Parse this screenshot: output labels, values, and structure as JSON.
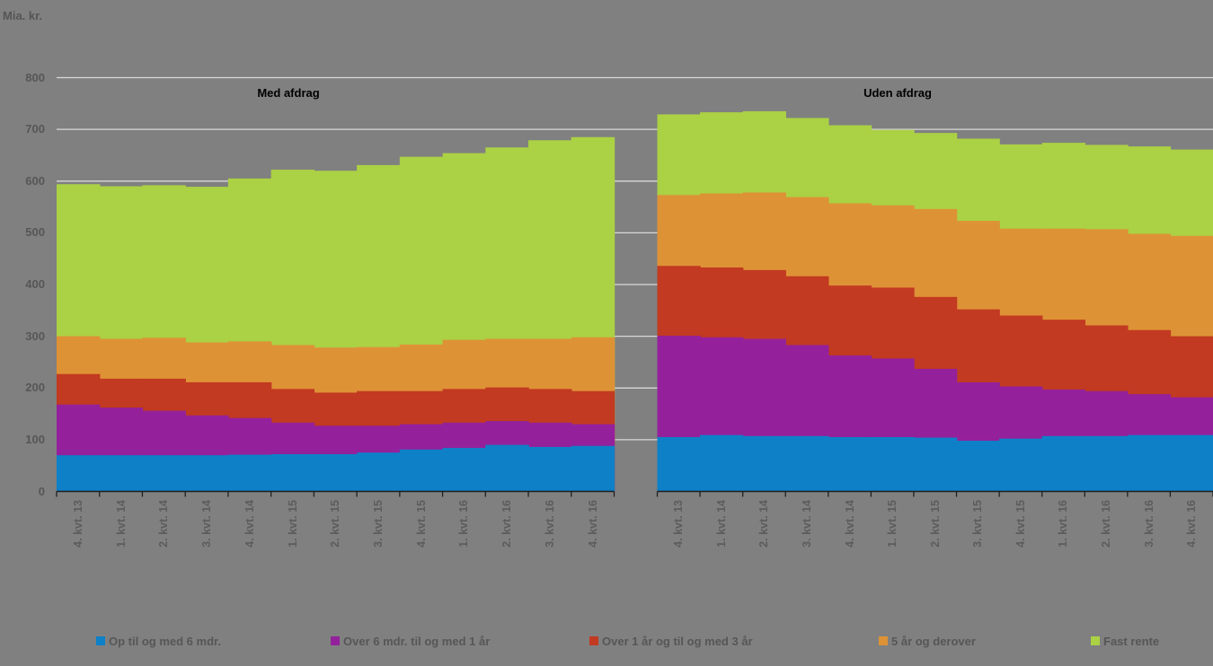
{
  "chart_data": {
    "type": "area",
    "subtype": "stacked-step-columns",
    "unit_label": "Mia. kr.",
    "ylim": [
      0,
      800
    ],
    "y_ticks": [
      0,
      100,
      200,
      300,
      400,
      500,
      600,
      700,
      800
    ],
    "grid": "horizontal",
    "legend_position": "bottom",
    "background_color": "#808080",
    "gridline_color": "#d9d9d9",
    "axis_line_color": "#1f1f1f",
    "categories": [
      "4. kvt. 13",
      "1. kvt. 14",
      "2. kvt. 14",
      "3. kvt. 14",
      "4. kvt. 14",
      "1. kvt. 15",
      "2. kvt. 15",
      "3. kvt. 15",
      "4. kvt. 15",
      "1. kvt. 16",
      "2. kvt. 16",
      "3. kvt. 16",
      "4. kvt. 16"
    ],
    "series_colors": {
      "Op til og med 6 mdr.": "#0E80C8",
      "Over 6 mdr. til og med 1 år": "#94219B",
      "Over 1 år og til og med 3 år": "#C23A21",
      "5 år og derover": "#DE9236",
      "Fast rente": "#ABD144"
    },
    "panels": [
      {
        "title": "Med afdrag",
        "series": [
          {
            "name": "Op til og med 6 mdr.",
            "color": "#0E80C8",
            "values": [
              70,
              70,
              70,
              70,
              71,
              72,
              72,
              75,
              81,
              84,
              90,
              86,
              88
            ]
          },
          {
            "name": "Over 6 mdr. til og med 1 år",
            "color": "#94219B",
            "values": [
              98,
              92,
              86,
              77,
              71,
              61,
              55,
              52,
              49,
              49,
              46,
              47,
              42
            ]
          },
          {
            "name": "Over 1 år og til og med 3 år",
            "color": "#C23A21",
            "values": [
              59,
              56,
              62,
              64,
              69,
              65,
              64,
              67,
              64,
              65,
              65,
              65,
              64
            ]
          },
          {
            "name": "5 år og derover",
            "color": "#DE9236",
            "values": [
              73,
              77,
              79,
              77,
              79,
              85,
              87,
              85,
              90,
              95,
              94,
              97,
              104
            ]
          },
          {
            "name": "Fast rente",
            "color": "#ABD144",
            "values": [
              294,
              295,
              295,
              301,
              315,
              339,
              342,
              352,
              363,
              361,
              370,
              384,
              387
            ]
          }
        ]
      },
      {
        "title": "Uden afdrag",
        "series": [
          {
            "name": "Op til og med 6 mdr.",
            "color": "#0E80C8",
            "values": [
              105,
              109,
              107,
              107,
              105,
              105,
              104,
              98,
              102,
              107,
              107,
              109,
              109
            ]
          },
          {
            "name": "Over 6 mdr. til og med 1 år",
            "color": "#94219B",
            "values": [
              196,
              189,
              188,
              176,
              158,
              152,
              133,
              113,
              101,
              90,
              87,
              79,
              73
            ]
          },
          {
            "name": "Over 1 år og til og med 3 år",
            "color": "#C23A21",
            "values": [
              135,
              135,
              133,
              133,
              135,
              137,
              139,
              141,
              137,
              135,
              127,
              124,
              118
            ]
          },
          {
            "name": "5 år og derover",
            "color": "#DE9236",
            "values": [
              137,
              143,
              150,
              153,
              159,
              159,
              170,
              171,
              168,
              176,
              186,
              186,
              194
            ]
          },
          {
            "name": "Fast rente",
            "color": "#ABD144",
            "values": [
              156,
              157,
              157,
              153,
              151,
              146,
              147,
              159,
              163,
              166,
              163,
              169,
              167
            ]
          }
        ]
      }
    ],
    "legend": {
      "items": [
        {
          "label": "Op til og med 6 mdr.",
          "color": "#0E80C8"
        },
        {
          "label": "Over 6 mdr. til og med 1 år",
          "color": "#94219B"
        },
        {
          "label": "Over 1 år og til og med 3 år",
          "color": "#C23A21"
        },
        {
          "label": "5 år og derover",
          "color": "#DE9236"
        },
        {
          "label": "Fast rente",
          "color": "#ABD144"
        }
      ]
    }
  }
}
